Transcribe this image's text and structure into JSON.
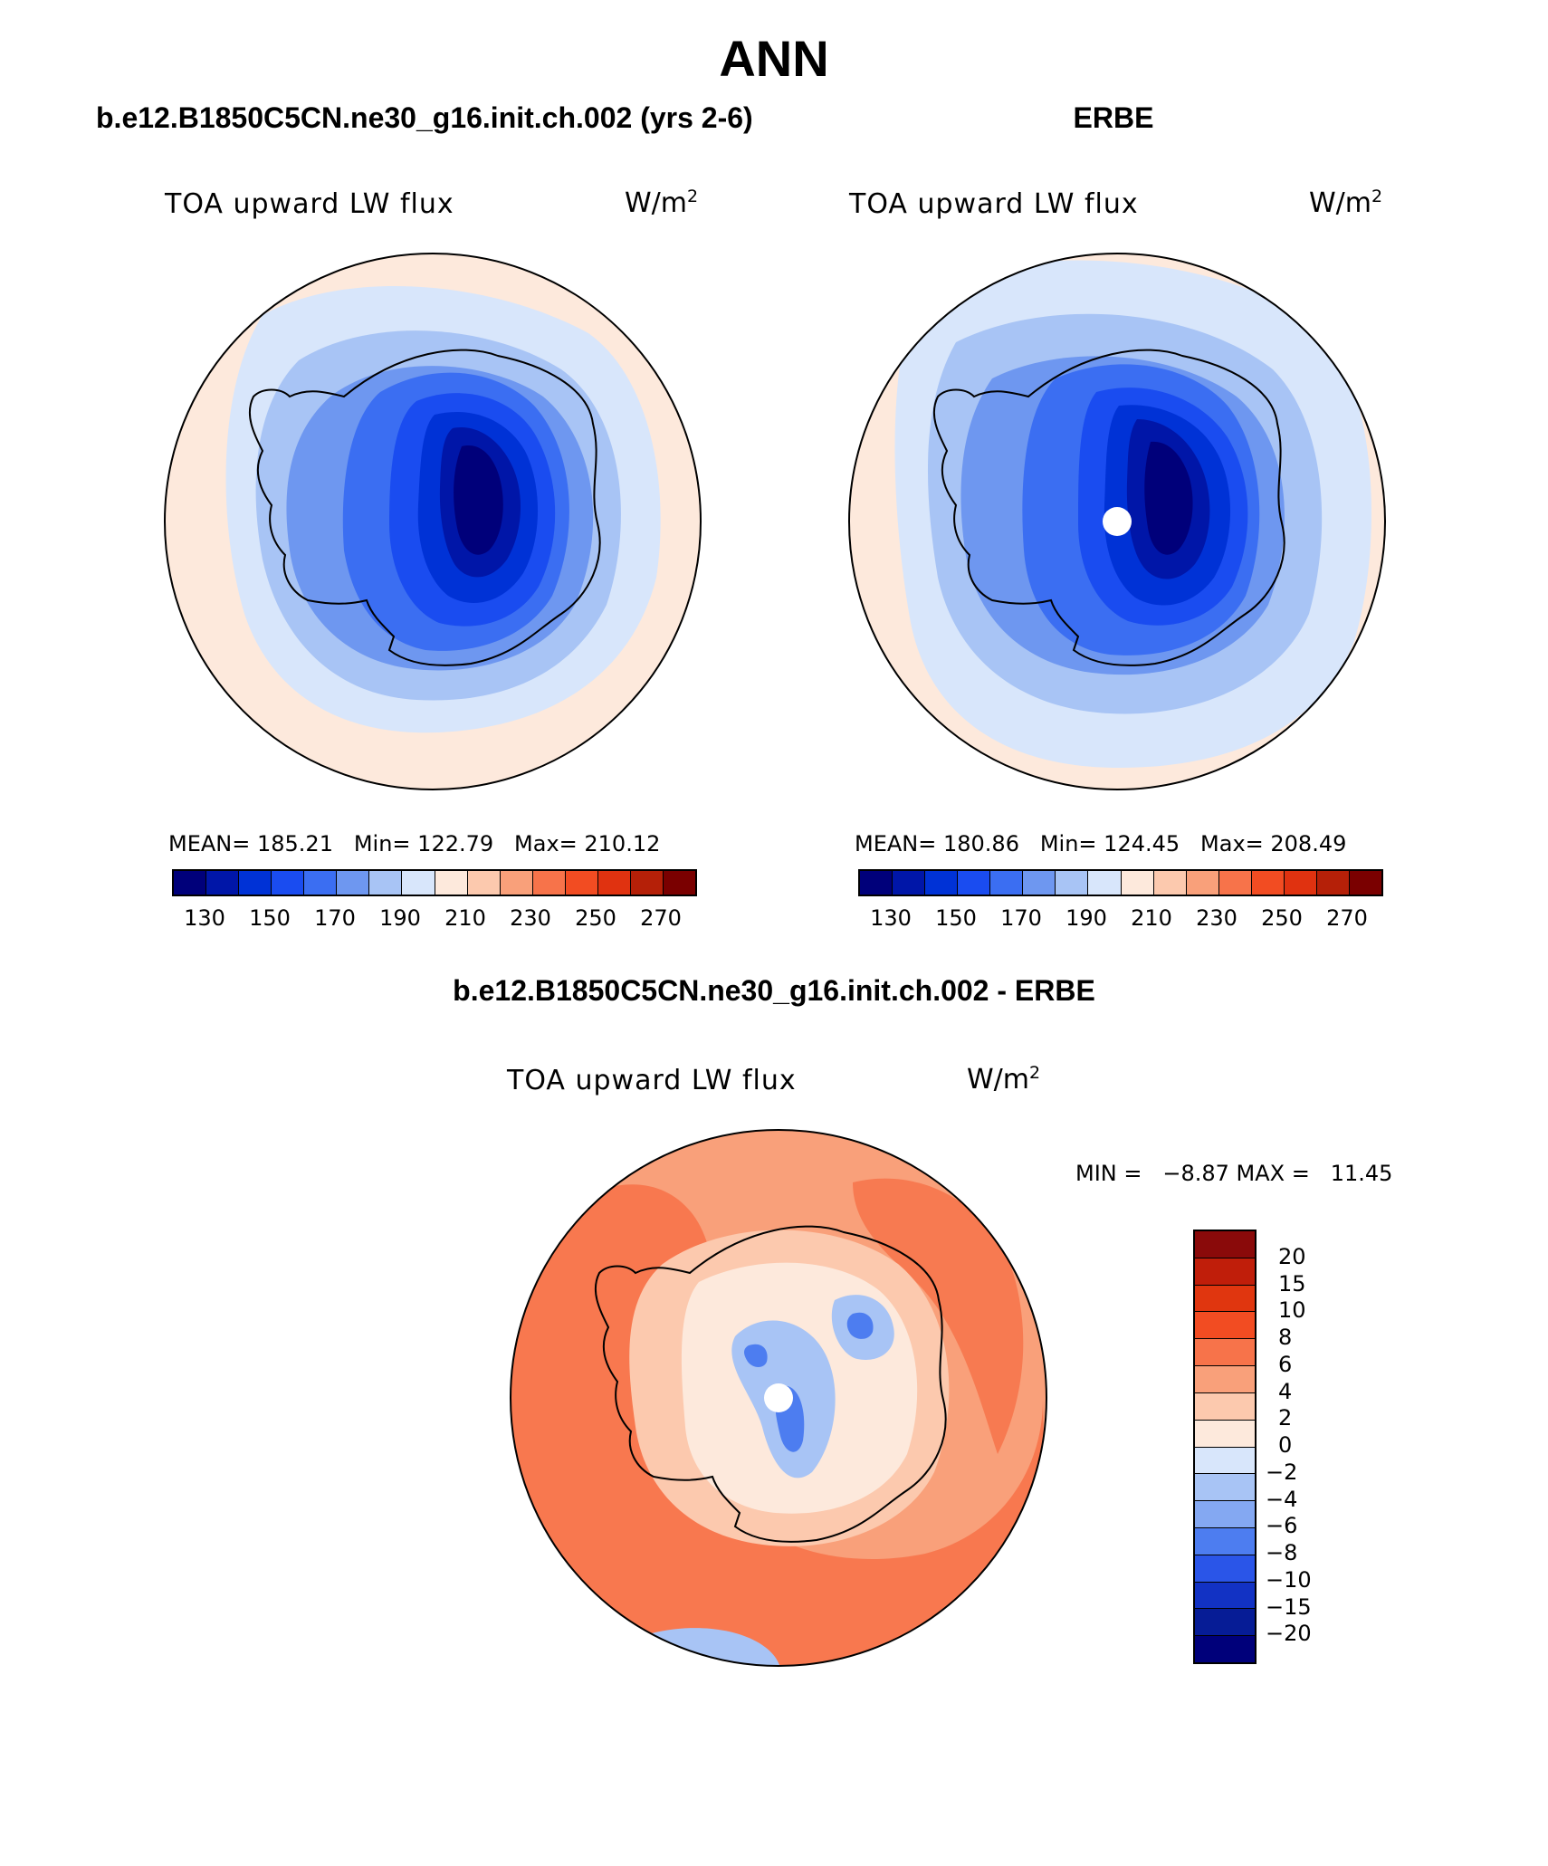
{
  "title": "ANN",
  "panels": [
    {
      "case_title": "b.e12.B1850C5CN.ne30_g16.init.ch.002 (yrs 2-6)",
      "variable": "TOA upward LW flux",
      "units_base": "W/m",
      "units_exp": "2",
      "stats": "MEAN= 185.21   Min= 122.79   Max= 210.12"
    },
    {
      "case_title": "ERBE",
      "variable": "TOA upward LW flux",
      "units_base": "W/m",
      "units_exp": "2",
      "stats": "MEAN= 180.86   Min= 124.45   Max= 208.49"
    }
  ],
  "abs_colorbar": {
    "labels": [
      "130",
      "150",
      "170",
      "190",
      "210",
      "230",
      "250",
      "270"
    ],
    "colors": [
      "#00007a",
      "#0016a8",
      "#0032d6",
      "#1a4cf0",
      "#3b6ef2",
      "#6e97f0",
      "#a8c4f5",
      "#d8e6fb",
      "#fde9dc",
      "#fcc9ae",
      "#f9a07a",
      "#f7734a",
      "#f24c22",
      "#e03210",
      "#b52008",
      "#7a0000"
    ]
  },
  "diff_panel": {
    "case_title": "b.e12.B1850C5CN.ne30_g16.init.ch.002 - ERBE",
    "variable": "TOA upward LW flux",
    "units_base": "W/m",
    "units_exp": "2",
    "stats": "MIN =   −8.87 MAX =   11.45"
  },
  "diff_colorbar": {
    "labels": [
      "20",
      "15",
      "10",
      "8",
      "6",
      "4",
      "2",
      "0",
      "−2",
      "−4",
      "−6",
      "−8",
      "−10",
      "−15",
      "−20"
    ],
    "colors": [
      "#8a0a0a",
      "#c01e0a",
      "#e0360f",
      "#f24c22",
      "#f7734a",
      "#f9a07a",
      "#fcc9ae",
      "#fde9dc",
      "#d8e6fb",
      "#a8c4f5",
      "#84a8f2",
      "#4d7df0",
      "#2a55e8",
      "#1232c4",
      "#061c96",
      "#00007a"
    ]
  },
  "map_colors": {
    "ocean_warm": "#fde9dc",
    "ocean_light": "#d8e6fb",
    "ocean_mid": "#a8c4f5",
    "land_1": "#6e97f0",
    "land_2": "#3b6ef2",
    "land_3": "#1a4cf0",
    "land_4": "#0032d6",
    "land_5": "#0016a8",
    "land_6": "#00007a",
    "diff_bg": "#f9a07a",
    "diff_strong": "#f7734a",
    "diff_pos": "#fcc9ae",
    "diff_neg": "#a8c4f5",
    "diff_neg2": "#4d7df0",
    "mask": "#ffffff"
  }
}
